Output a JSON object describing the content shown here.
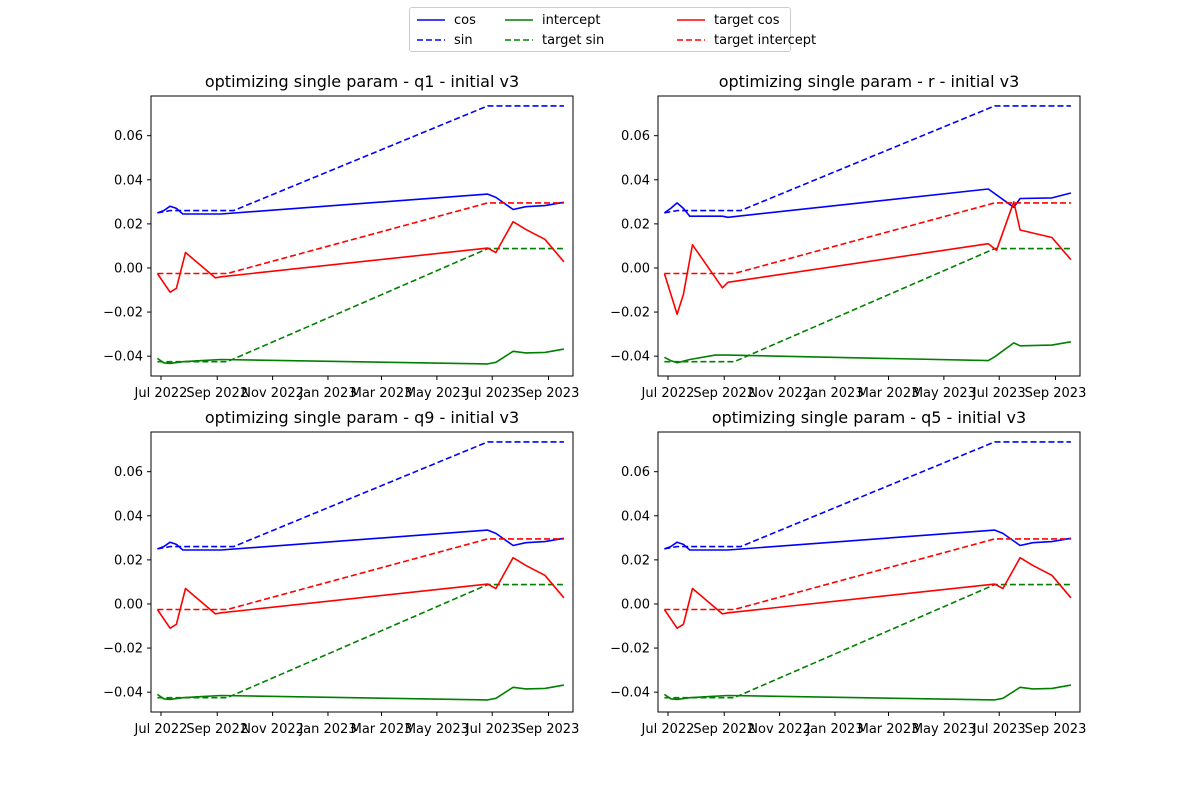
{
  "legend": {
    "placement": "top-center",
    "entries": [
      {
        "label": "cos",
        "color": "#0000ff",
        "dash": "solid"
      },
      {
        "label": "sin",
        "color": "#0000ff",
        "dash": "dashed"
      },
      {
        "label": "intercept",
        "color": "#008000",
        "dash": "solid"
      },
      {
        "label": "target sin",
        "color": "#008000",
        "dash": "dashed"
      },
      {
        "label": "target cos",
        "color": "#ff0000",
        "dash": "solid"
      },
      {
        "label": "target intercept",
        "color": "#ff0000",
        "dash": "dashed"
      }
    ]
  },
  "chart_data": [
    {
      "type": "line",
      "title": "optimizing single param - q1 - initial v3",
      "xlabel": "",
      "ylabel": "",
      "x_type": "date",
      "xlim": [
        "2022-06-20",
        "2023-09-28"
      ],
      "ylim": [
        -0.049,
        0.078
      ],
      "xticks": [
        "2022-07-01",
        "2022-09-01",
        "2022-11-01",
        "2023-01-01",
        "2023-03-01",
        "2023-05-01",
        "2023-07-01",
        "2023-09-01"
      ],
      "xtick_labels": [
        "Jul 2022",
        "Sep 2022",
        "Nov 2022",
        "Jan 2023",
        "Mar 2023",
        "May 2023",
        "Jul 2023",
        "Sep 2023"
      ],
      "yticks": [
        -0.04,
        -0.02,
        0.0,
        0.02,
        0.04,
        0.06
      ],
      "ytick_labels": [
        "−0.04",
        "−0.02",
        "0.00",
        "0.02",
        "0.04",
        "0.06"
      ],
      "grid": false,
      "series": [
        {
          "name": "cos",
          "color": "#0000ff",
          "dash": "solid",
          "x": [
            "2022-06-27",
            "2022-07-04",
            "2022-07-11",
            "2022-07-18",
            "2022-07-25",
            "2022-09-05",
            "2023-06-26",
            "2023-07-05",
            "2023-07-24",
            "2023-08-07",
            "2023-08-28",
            "2023-09-18"
          ],
          "y": [
            0.025,
            0.026,
            0.028,
            0.027,
            0.0245,
            0.0245,
            0.0335,
            0.032,
            0.0265,
            0.0278,
            0.0283,
            0.0298
          ]
        },
        {
          "name": "sin",
          "color": "#0000ff",
          "dash": "dashed",
          "x": [
            "2022-06-27",
            "2022-07-11",
            "2022-09-19",
            "2023-06-26",
            "2023-09-18"
          ],
          "y": [
            0.025,
            0.026,
            0.026,
            0.0735,
            0.0735
          ]
        },
        {
          "name": "intercept",
          "color": "#008000",
          "dash": "solid",
          "x": [
            "2022-06-27",
            "2022-07-04",
            "2022-07-11",
            "2022-07-25",
            "2022-08-15",
            "2022-09-05",
            "2023-06-26",
            "2023-07-05",
            "2023-07-24",
            "2023-08-07",
            "2023-08-28",
            "2023-09-18"
          ],
          "y": [
            -0.041,
            -0.043,
            -0.0433,
            -0.0425,
            -0.042,
            -0.0415,
            -0.0435,
            -0.0428,
            -0.0378,
            -0.0385,
            -0.0383,
            -0.0368
          ]
        },
        {
          "name": "target sin",
          "color": "#008000",
          "dash": "dashed",
          "x": [
            "2022-06-27",
            "2022-09-12",
            "2023-06-26",
            "2023-09-18"
          ],
          "y": [
            -0.0425,
            -0.0425,
            0.0088,
            0.0088
          ]
        },
        {
          "name": "target cos",
          "color": "#ff0000",
          "dash": "solid",
          "x": [
            "2022-06-27",
            "2022-07-11",
            "2022-07-18",
            "2022-07-28",
            "2022-08-30",
            "2022-09-05",
            "2023-06-26",
            "2023-07-05",
            "2023-07-24",
            "2023-08-07",
            "2023-08-28",
            "2023-09-18"
          ],
          "y": [
            -0.0025,
            -0.011,
            -0.0092,
            0.007,
            -0.0045,
            -0.004,
            0.009,
            0.007,
            0.021,
            0.0175,
            0.013,
            0.0028
          ]
        },
        {
          "name": "target intercept",
          "color": "#ff0000",
          "dash": "dashed",
          "x": [
            "2022-06-27",
            "2022-09-12",
            "2023-06-26",
            "2023-09-18"
          ],
          "y": [
            -0.0025,
            -0.0025,
            0.0295,
            0.0295
          ]
        }
      ]
    },
    {
      "type": "line",
      "title": "optimizing single param - r - initial v3",
      "xlabel": "",
      "ylabel": "",
      "x_type": "date",
      "xlim": [
        "2022-06-20",
        "2023-09-28"
      ],
      "ylim": [
        -0.049,
        0.078
      ],
      "xticks": [
        "2022-07-01",
        "2022-09-01",
        "2022-11-01",
        "2023-01-01",
        "2023-03-01",
        "2023-05-01",
        "2023-07-01",
        "2023-09-01"
      ],
      "xtick_labels": [
        "Jul 2022",
        "Sep 2022",
        "Nov 2022",
        "Jan 2023",
        "Mar 2023",
        "May 2023",
        "Jul 2023",
        "Sep 2023"
      ],
      "yticks": [
        -0.04,
        -0.02,
        0.0,
        0.02,
        0.04,
        0.06
      ],
      "ytick_labels": [
        "−0.04",
        "−0.02",
        "0.00",
        "0.02",
        "0.04",
        "0.06"
      ],
      "grid": false,
      "series": [
        {
          "name": "cos",
          "color": "#0000ff",
          "dash": "solid",
          "x": [
            "2022-06-27",
            "2022-07-04",
            "2022-07-11",
            "2022-07-18",
            "2022-07-25",
            "2022-08-30",
            "2022-09-05",
            "2023-06-19",
            "2023-07-17",
            "2023-07-24",
            "2023-08-28",
            "2023-09-18"
          ],
          "y": [
            0.025,
            0.027,
            0.0295,
            0.027,
            0.0235,
            0.0235,
            0.023,
            0.0358,
            0.0275,
            0.0315,
            0.0318,
            0.034
          ]
        },
        {
          "name": "sin",
          "color": "#0000ff",
          "dash": "dashed",
          "x": [
            "2022-06-27",
            "2022-07-11",
            "2022-09-19",
            "2023-06-26",
            "2023-09-18"
          ],
          "y": [
            0.025,
            0.026,
            0.026,
            0.0735,
            0.0735
          ]
        },
        {
          "name": "intercept",
          "color": "#008000",
          "dash": "solid",
          "x": [
            "2022-06-27",
            "2022-07-04",
            "2022-07-11",
            "2022-07-25",
            "2022-08-22",
            "2022-09-05",
            "2023-06-19",
            "2023-06-26",
            "2023-07-17",
            "2023-07-24",
            "2023-08-28",
            "2023-09-18"
          ],
          "y": [
            -0.0405,
            -0.042,
            -0.043,
            -0.0415,
            -0.0395,
            -0.0395,
            -0.042,
            -0.0403,
            -0.034,
            -0.0353,
            -0.035,
            -0.0335
          ]
        },
        {
          "name": "target sin",
          "color": "#008000",
          "dash": "dashed",
          "x": [
            "2022-06-27",
            "2022-09-12",
            "2023-06-26",
            "2023-09-18"
          ],
          "y": [
            -0.0425,
            -0.0425,
            0.0088,
            0.0088
          ]
        },
        {
          "name": "target cos",
          "color": "#ff0000",
          "dash": "solid",
          "x": [
            "2022-06-27",
            "2022-07-11",
            "2022-07-18",
            "2022-07-28",
            "2022-08-30",
            "2022-09-05",
            "2023-06-19",
            "2023-06-28",
            "2023-07-17",
            "2023-07-24",
            "2023-08-28",
            "2023-09-18"
          ],
          "y": [
            -0.0025,
            -0.021,
            -0.012,
            0.0105,
            -0.009,
            -0.0065,
            0.011,
            0.008,
            0.03,
            0.0172,
            0.0138,
            0.0038
          ]
        },
        {
          "name": "target intercept",
          "color": "#ff0000",
          "dash": "dashed",
          "x": [
            "2022-06-27",
            "2022-09-12",
            "2023-06-26",
            "2023-09-18"
          ],
          "y": [
            -0.0025,
            -0.0025,
            0.0295,
            0.0295
          ]
        }
      ]
    },
    {
      "type": "line",
      "title": "optimizing single param - q9 - initial v3",
      "xlabel": "",
      "ylabel": "",
      "x_type": "date",
      "xlim": [
        "2022-06-20",
        "2023-09-28"
      ],
      "ylim": [
        -0.049,
        0.078
      ],
      "xticks": [
        "2022-07-01",
        "2022-09-01",
        "2022-11-01",
        "2023-01-01",
        "2023-03-01",
        "2023-05-01",
        "2023-07-01",
        "2023-09-01"
      ],
      "xtick_labels": [
        "Jul 2022",
        "Sep 2022",
        "Nov 2022",
        "Jan 2023",
        "Mar 2023",
        "May 2023",
        "Jul 2023",
        "Sep 2023"
      ],
      "yticks": [
        -0.04,
        -0.02,
        0.0,
        0.02,
        0.04,
        0.06
      ],
      "ytick_labels": [
        "−0.04",
        "−0.02",
        "0.00",
        "0.02",
        "0.04",
        "0.06"
      ],
      "grid": false,
      "series": [
        {
          "name": "cos",
          "color": "#0000ff",
          "dash": "solid",
          "x": [
            "2022-06-27",
            "2022-07-04",
            "2022-07-11",
            "2022-07-18",
            "2022-07-25",
            "2022-09-05",
            "2023-06-26",
            "2023-07-05",
            "2023-07-24",
            "2023-08-07",
            "2023-08-28",
            "2023-09-18"
          ],
          "y": [
            0.025,
            0.026,
            0.028,
            0.027,
            0.0245,
            0.0245,
            0.0335,
            0.032,
            0.0265,
            0.0278,
            0.0283,
            0.0298
          ]
        },
        {
          "name": "sin",
          "color": "#0000ff",
          "dash": "dashed",
          "x": [
            "2022-06-27",
            "2022-07-11",
            "2022-09-19",
            "2023-06-26",
            "2023-09-18"
          ],
          "y": [
            0.025,
            0.026,
            0.026,
            0.0735,
            0.0735
          ]
        },
        {
          "name": "intercept",
          "color": "#008000",
          "dash": "solid",
          "x": [
            "2022-06-27",
            "2022-07-04",
            "2022-07-11",
            "2022-07-25",
            "2022-08-15",
            "2022-09-05",
            "2023-06-26",
            "2023-07-05",
            "2023-07-24",
            "2023-08-07",
            "2023-08-28",
            "2023-09-18"
          ],
          "y": [
            -0.041,
            -0.043,
            -0.0433,
            -0.0425,
            -0.042,
            -0.0415,
            -0.0435,
            -0.0428,
            -0.0378,
            -0.0385,
            -0.0383,
            -0.0368
          ]
        },
        {
          "name": "target sin",
          "color": "#008000",
          "dash": "dashed",
          "x": [
            "2022-06-27",
            "2022-09-12",
            "2023-06-26",
            "2023-09-18"
          ],
          "y": [
            -0.0425,
            -0.0425,
            0.0088,
            0.0088
          ]
        },
        {
          "name": "target cos",
          "color": "#ff0000",
          "dash": "solid",
          "x": [
            "2022-06-27",
            "2022-07-11",
            "2022-07-18",
            "2022-07-28",
            "2022-08-30",
            "2022-09-05",
            "2023-06-26",
            "2023-07-05",
            "2023-07-24",
            "2023-08-07",
            "2023-08-28",
            "2023-09-18"
          ],
          "y": [
            -0.0025,
            -0.011,
            -0.0092,
            0.007,
            -0.0045,
            -0.004,
            0.009,
            0.007,
            0.021,
            0.0175,
            0.013,
            0.0028
          ]
        },
        {
          "name": "target intercept",
          "color": "#ff0000",
          "dash": "dashed",
          "x": [
            "2022-06-27",
            "2022-09-12",
            "2023-06-26",
            "2023-09-18"
          ],
          "y": [
            -0.0025,
            -0.0025,
            0.0295,
            0.0295
          ]
        }
      ]
    },
    {
      "type": "line",
      "title": "optimizing single param - q5 - initial v3",
      "xlabel": "",
      "ylabel": "",
      "x_type": "date",
      "xlim": [
        "2022-06-20",
        "2023-09-28"
      ],
      "ylim": [
        -0.049,
        0.078
      ],
      "xticks": [
        "2022-07-01",
        "2022-09-01",
        "2022-11-01",
        "2023-01-01",
        "2023-03-01",
        "2023-05-01",
        "2023-07-01",
        "2023-09-01"
      ],
      "xtick_labels": [
        "Jul 2022",
        "Sep 2022",
        "Nov 2022",
        "Jan 2023",
        "Mar 2023",
        "May 2023",
        "Jul 2023",
        "Sep 2023"
      ],
      "yticks": [
        -0.04,
        -0.02,
        0.0,
        0.02,
        0.04,
        0.06
      ],
      "ytick_labels": [
        "−0.04",
        "−0.02",
        "0.00",
        "0.02",
        "0.04",
        "0.06"
      ],
      "grid": false,
      "series": [
        {
          "name": "cos",
          "color": "#0000ff",
          "dash": "solid",
          "x": [
            "2022-06-27",
            "2022-07-04",
            "2022-07-11",
            "2022-07-18",
            "2022-07-25",
            "2022-09-05",
            "2023-06-26",
            "2023-07-05",
            "2023-07-24",
            "2023-08-07",
            "2023-08-28",
            "2023-09-18"
          ],
          "y": [
            0.025,
            0.026,
            0.028,
            0.027,
            0.0245,
            0.0245,
            0.0335,
            0.032,
            0.0265,
            0.0278,
            0.0283,
            0.0298
          ]
        },
        {
          "name": "sin",
          "color": "#0000ff",
          "dash": "dashed",
          "x": [
            "2022-06-27",
            "2022-07-11",
            "2022-09-19",
            "2023-06-26",
            "2023-09-18"
          ],
          "y": [
            0.025,
            0.026,
            0.026,
            0.0735,
            0.0735
          ]
        },
        {
          "name": "intercept",
          "color": "#008000",
          "dash": "solid",
          "x": [
            "2022-06-27",
            "2022-07-04",
            "2022-07-11",
            "2022-07-25",
            "2022-08-15",
            "2022-09-05",
            "2023-06-26",
            "2023-07-05",
            "2023-07-24",
            "2023-08-07",
            "2023-08-28",
            "2023-09-18"
          ],
          "y": [
            -0.041,
            -0.043,
            -0.0433,
            -0.0425,
            -0.042,
            -0.0415,
            -0.0435,
            -0.0428,
            -0.0378,
            -0.0385,
            -0.0383,
            -0.0368
          ]
        },
        {
          "name": "target sin",
          "color": "#008000",
          "dash": "dashed",
          "x": [
            "2022-06-27",
            "2022-09-12",
            "2023-06-26",
            "2023-09-18"
          ],
          "y": [
            -0.0425,
            -0.0425,
            0.0088,
            0.0088
          ]
        },
        {
          "name": "target cos",
          "color": "#ff0000",
          "dash": "solid",
          "x": [
            "2022-06-27",
            "2022-07-11",
            "2022-07-18",
            "2022-07-28",
            "2022-08-30",
            "2022-09-05",
            "2023-06-26",
            "2023-07-05",
            "2023-07-24",
            "2023-08-07",
            "2023-08-28",
            "2023-09-18"
          ],
          "y": [
            -0.0025,
            -0.011,
            -0.0092,
            0.007,
            -0.0045,
            -0.004,
            0.009,
            0.007,
            0.021,
            0.0175,
            0.013,
            0.0028
          ]
        },
        {
          "name": "target intercept",
          "color": "#ff0000",
          "dash": "dashed",
          "x": [
            "2022-06-27",
            "2022-09-12",
            "2023-06-26",
            "2023-09-18"
          ],
          "y": [
            -0.0025,
            -0.0025,
            0.0295,
            0.0295
          ]
        }
      ]
    }
  ]
}
